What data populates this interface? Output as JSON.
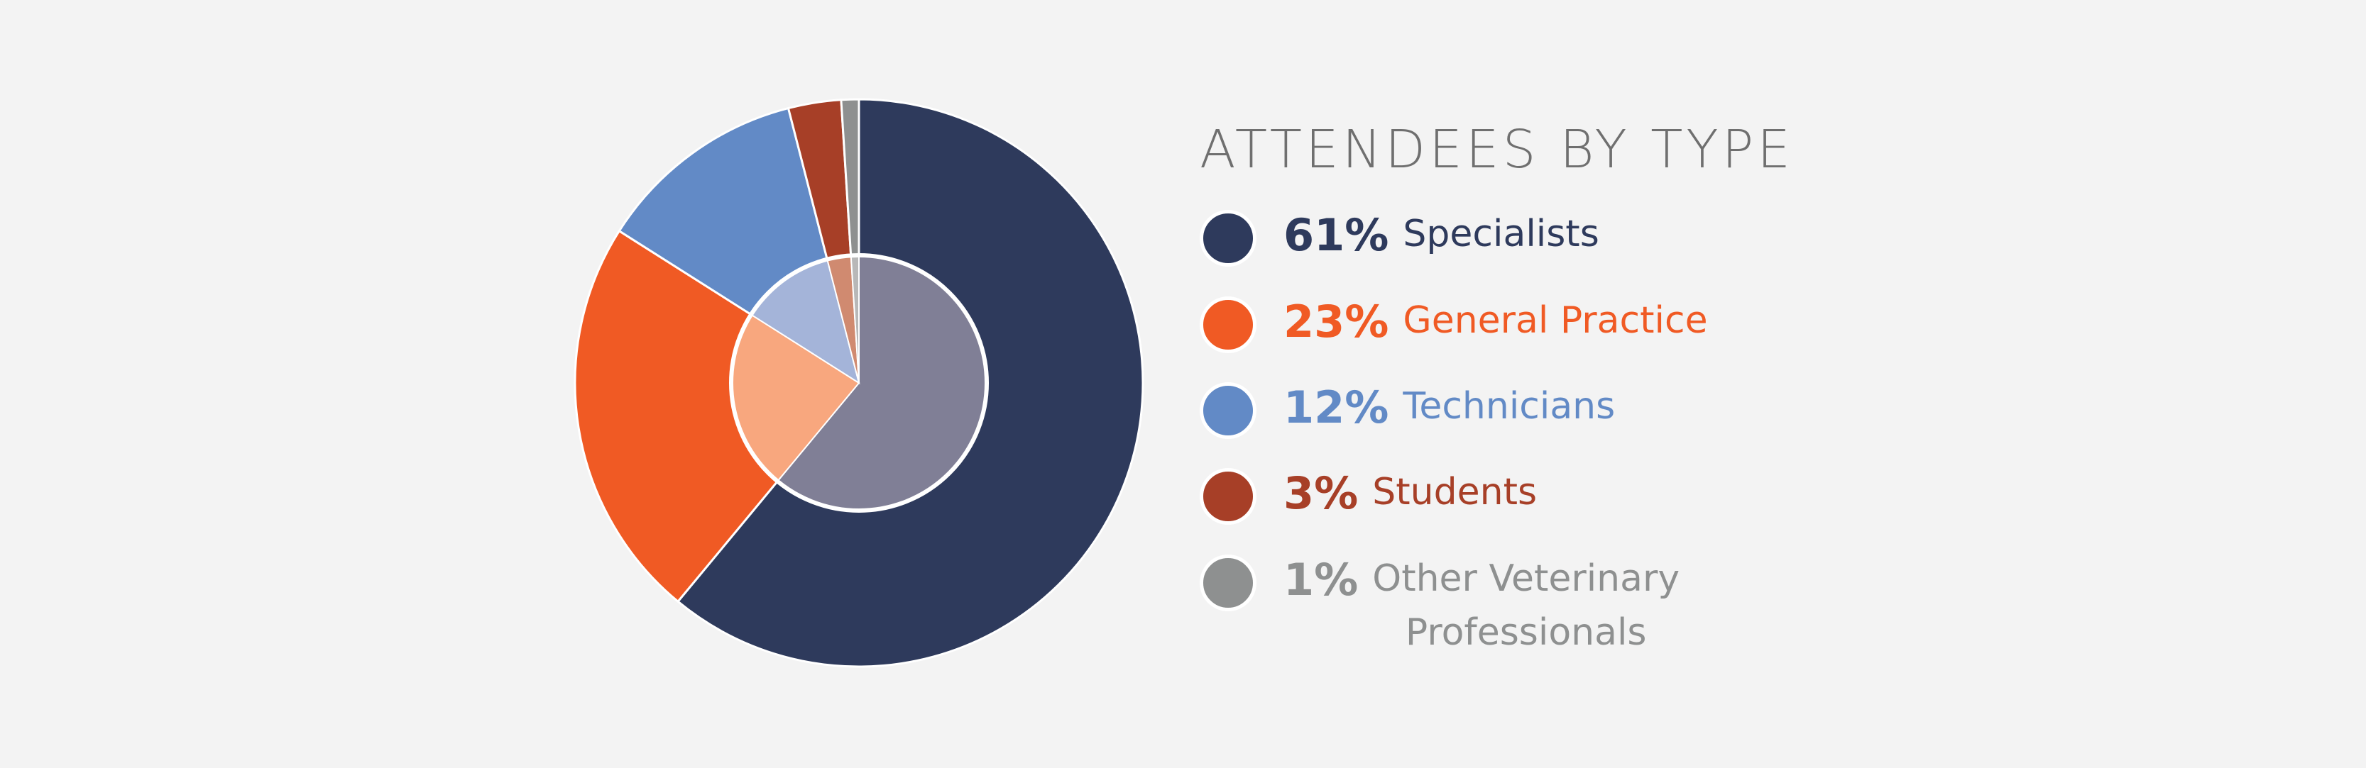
{
  "chart_data": {
    "type": "pie",
    "subtype": "donut-with-inner-ring",
    "title": "ATTENDEES BY TYPE",
    "slices": [
      {
        "pct_label": "61%",
        "label": "Specialists",
        "value": 61,
        "color": "#2e3a5c",
        "inner_color": "#807f96"
      },
      {
        "pct_label": "23%",
        "label": "General Practice",
        "value": 23,
        "color": "#f05a24",
        "inner_color": "#f8a77e"
      },
      {
        "pct_label": "12%",
        "label": "Technicians",
        "value": 12,
        "color": "#628ac6",
        "inner_color": "#a4b4d9"
      },
      {
        "pct_label": "3%",
        "label": "Students",
        "value": 3,
        "color": "#a73f27",
        "inner_color": "#d08a70"
      },
      {
        "pct_label": "1%",
        "label": "Other Veterinary\nProfessionals",
        "value": 1,
        "color": "#8e9090",
        "inner_color": "#b8b8b8"
      }
    ],
    "legend_position": "right"
  },
  "colors": {
    "background": "#f3f3f3",
    "title": "#6f6f6f",
    "slice_border": "#ffffff"
  }
}
